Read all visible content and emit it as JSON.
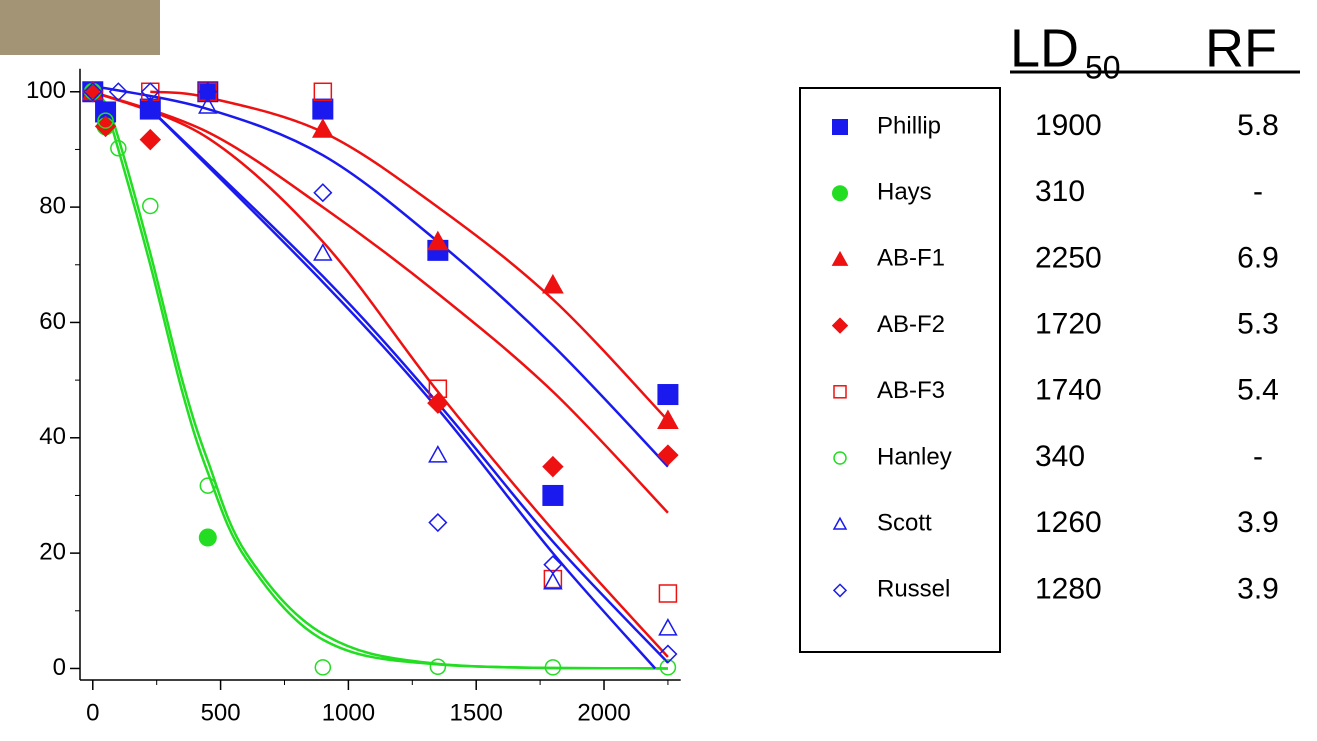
{
  "chart_data": {
    "type": "scatter",
    "xlim": [
      -50,
      2300
    ],
    "ylim": [
      -2,
      104
    ],
    "xticks": [
      0,
      500,
      1000,
      1500,
      2000
    ],
    "yticks": [
      0,
      20,
      40,
      60,
      80,
      100
    ],
    "xminorticks": [
      250,
      750,
      1250,
      1750,
      2250
    ],
    "yminorticks": [
      10,
      30,
      50,
      70,
      90
    ],
    "table_header": {
      "ld": "LD",
      "ld_sub": "50",
      "rf": "RF"
    },
    "series": [
      {
        "name": "Phillip",
        "color": "#1a1aee",
        "marker": "square",
        "filled": true,
        "ld50": "1900",
        "rf": "5.8",
        "x": [
          0,
          50,
          225,
          450,
          900,
          1350,
          1800,
          2250
        ],
        "values": [
          100,
          96.5,
          97,
          100,
          97,
          72.5,
          30,
          47.5
        ],
        "fit": {
          "x": [
            0,
            450,
            900,
            1350,
            1800,
            2250
          ],
          "values": [
            101,
            97,
            89,
            74,
            56,
            35
          ]
        }
      },
      {
        "name": "Hays",
        "color": "#22dd22",
        "marker": "circle",
        "filled": true,
        "ld50": "310",
        "rf": "-",
        "x": [
          0,
          50,
          450
        ],
        "values": [
          100,
          94,
          22.7
        ],
        "fit": {
          "x": [
            0,
            50,
            100,
            225,
            350,
            450,
            600,
            900,
            1350,
            2250
          ],
          "values": [
            100,
            97,
            90,
            70,
            48,
            34,
            19,
            5,
            0.7,
            0
          ]
        }
      },
      {
        "name": "AB-F1",
        "color": "#ee1111",
        "marker": "triangle",
        "filled": true,
        "ld50": "2250",
        "rf": "6.9",
        "x": [
          0,
          900,
          1350,
          1800,
          2250
        ],
        "values": [
          100,
          93.5,
          74,
          66.5,
          43
        ],
        "fit": {
          "x": [
            225,
            450,
            900,
            1350,
            1800,
            2250
          ],
          "values": [
            100,
            99,
            93,
            80,
            64,
            43
          ]
        }
      },
      {
        "name": "AB-F2",
        "color": "#ee1111",
        "marker": "diamond",
        "filled": true,
        "ld50": "1720",
        "rf": "5.3",
        "x": [
          0,
          50,
          225,
          1350,
          1800,
          2250
        ],
        "values": [
          100,
          94,
          91.7,
          46,
          35,
          37
        ],
        "fit": {
          "x": [
            0,
            450,
            900,
            1350,
            1800,
            2250
          ],
          "values": [
            100,
            92,
            74,
            48,
            24,
            2
          ]
        }
      },
      {
        "name": "AB-F3",
        "color": "#ee1111",
        "marker": "square",
        "filled": false,
        "ld50": "1740",
        "rf": "5.4",
        "x": [
          225,
          450,
          900,
          1350,
          1800,
          2250
        ],
        "values": [
          100,
          100,
          100,
          48.5,
          15.5,
          13
        ],
        "fit": {
          "x": [
            0,
            450,
            900,
            1350,
            1800,
            2250
          ],
          "values": [
            100,
            93,
            80,
            65,
            48,
            27
          ]
        }
      },
      {
        "name": "Hanley",
        "color": "#22dd22",
        "marker": "circle",
        "filled": false,
        "ld50": "340",
        "rf": "-",
        "x": [
          0,
          50,
          100,
          225,
          450,
          900,
          1350,
          1800,
          2250
        ],
        "values": [
          100,
          95,
          90.2,
          80.2,
          31.7,
          0.2,
          0.3,
          0.2,
          0.2
        ],
        "fit": {
          "x": [
            0,
            50,
            100,
            225,
            350,
            450,
            600,
            900,
            1350,
            2250
          ],
          "values": [
            100,
            98,
            92,
            72,
            50,
            36,
            20,
            6,
            0.8,
            0
          ]
        }
      },
      {
        "name": "Scott",
        "color": "#1a1aee",
        "marker": "triangle",
        "filled": false,
        "ld50": "1260",
        "rf": "3.9",
        "x": [
          225,
          450,
          900,
          1350,
          1800,
          2250
        ],
        "values": [
          97.5,
          97.5,
          72,
          37,
          15,
          7
        ],
        "fit": {
          "x": [
            225,
            900,
            1350,
            1800,
            2200
          ],
          "values": [
            97,
            67,
            45,
            20,
            0
          ]
        }
      },
      {
        "name": "Russel",
        "color": "#1a1aee",
        "marker": "diamond",
        "filled": false,
        "ld50": "1280",
        "rf": "3.9",
        "x": [
          0,
          100,
          225,
          450,
          900,
          1350,
          1800,
          2250
        ],
        "values": [
          100,
          100,
          100,
          100,
          82.5,
          25.3,
          18,
          2.5
        ],
        "fit": {
          "x": [
            225,
            900,
            1350,
            1800,
            2250
          ],
          "values": [
            97,
            68,
            46,
            22,
            1
          ]
        }
      }
    ]
  }
}
